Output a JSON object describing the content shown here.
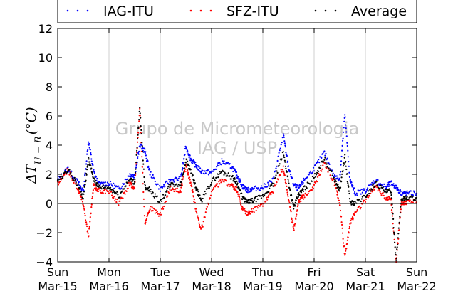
{
  "chart_data": {
    "type": "scatter",
    "ylabel": "ΔT_{U−R}(°C)",
    "ylabel_main": "ΔT",
    "ylabel_sub": "U − R",
    "ylabel_unit": "(°C)",
    "ylim": [
      -4,
      12
    ],
    "yticks": [
      -4,
      -2,
      0,
      2,
      4,
      6,
      8,
      10,
      12
    ],
    "ytick_labels": [
      "−4",
      "−2",
      "0",
      "2",
      "4",
      "6",
      "8",
      "10",
      "12"
    ],
    "xlim": [
      "2015-03-15",
      "2015-03-22"
    ],
    "xticks": [
      {
        "day": "Sun",
        "date": "Mar-15"
      },
      {
        "day": "Mon",
        "date": "Mar-16"
      },
      {
        "day": "Tue",
        "date": "Mar-17"
      },
      {
        "day": "Wed",
        "date": "Mar-18"
      },
      {
        "day": "Thu",
        "date": "Mar-19"
      },
      {
        "day": "Fri",
        "date": "Mar-20"
      },
      {
        "day": "Sat",
        "date": "Mar-21"
      },
      {
        "day": "Sun",
        "date": "Mar-22"
      }
    ],
    "grid": "vertical",
    "zero_line": true,
    "legend_position": "top",
    "watermark": [
      "Grupo de Micrometeorologia",
      "IAG / USP"
    ],
    "series": [
      {
        "name": "IAG-ITU",
        "color": "#0000ff",
        "x_days": [
          0.0,
          0.2,
          0.4,
          0.5,
          0.6,
          0.7,
          0.8,
          1.0,
          1.2,
          1.4,
          1.5,
          1.6,
          1.7,
          1.8,
          2.0,
          2.2,
          2.4,
          2.5,
          2.6,
          2.7,
          2.8,
          3.0,
          3.2,
          3.4,
          3.5,
          3.6,
          3.7,
          3.8,
          4.0,
          4.2,
          4.4,
          4.5,
          4.6,
          4.7,
          4.8,
          5.0,
          5.2,
          5.4,
          5.5,
          5.6,
          5.7,
          5.8,
          6.0,
          6.2,
          6.4,
          6.5,
          6.6,
          6.7,
          6.8,
          7.0
        ],
        "y": [
          1.6,
          2.4,
          1.4,
          0.8,
          4.3,
          2.2,
          1.3,
          1.4,
          1.0,
          2.0,
          1.9,
          4.0,
          3.6,
          2.1,
          1.0,
          1.6,
          1.7,
          3.9,
          3.0,
          2.6,
          2.2,
          2.1,
          2.9,
          2.5,
          1.9,
          1.2,
          0.9,
          1.0,
          1.1,
          1.6,
          4.7,
          2.5,
          1.3,
          1.0,
          1.6,
          2.4,
          3.5,
          1.8,
          1.7,
          6.1,
          1.6,
          0.7,
          0.9,
          1.6,
          1.1,
          1.4,
          1.1,
          0.7,
          0.7,
          0.7
        ]
      },
      {
        "name": "SFZ-ITU",
        "color": "#ff0000",
        "x_days": [
          0.0,
          0.2,
          0.4,
          0.5,
          0.6,
          0.7,
          0.8,
          1.0,
          1.2,
          1.4,
          1.5,
          1.6,
          1.7,
          1.8,
          2.0,
          2.2,
          2.4,
          2.5,
          2.6,
          2.7,
          2.8,
          3.0,
          3.2,
          3.4,
          3.5,
          3.6,
          3.7,
          3.8,
          4.0,
          4.2,
          4.4,
          4.5,
          4.6,
          4.7,
          4.8,
          5.0,
          5.2,
          5.4,
          5.5,
          5.6,
          5.7,
          5.8,
          6.0,
          6.2,
          6.4,
          6.5,
          6.6,
          6.7,
          6.8,
          7.0
        ],
        "y": [
          1.4,
          2.3,
          1.0,
          0.0,
          -2.3,
          1.2,
          0.9,
          0.8,
          0.0,
          1.4,
          1.0,
          6.5,
          -1.3,
          -0.3,
          -0.8,
          1.0,
          0.9,
          2.6,
          1.3,
          -0.5,
          -1.8,
          0.8,
          1.6,
          1.2,
          0.9,
          -0.4,
          -0.7,
          -0.5,
          0.0,
          0.9,
          2.5,
          0.4,
          -1.8,
          0.2,
          0.5,
          1.2,
          2.8,
          1.4,
          0.0,
          -3.6,
          -1.4,
          -0.6,
          0.2,
          1.2,
          0.4,
          0.3,
          -4.0,
          0.0,
          0.1,
          0.1
        ]
      },
      {
        "name": "Average",
        "color": "#000000",
        "x_days": [
          0.0,
          0.2,
          0.4,
          0.5,
          0.6,
          0.7,
          0.8,
          1.0,
          1.2,
          1.4,
          1.5,
          1.6,
          1.7,
          1.8,
          2.0,
          2.2,
          2.4,
          2.5,
          2.6,
          2.7,
          2.8,
          3.0,
          3.2,
          3.4,
          3.5,
          3.6,
          3.7,
          3.8,
          4.0,
          4.2,
          4.4,
          4.5,
          4.6,
          4.7,
          4.8,
          5.0,
          5.2,
          5.4,
          5.5,
          5.6,
          5.7,
          5.8,
          6.0,
          6.2,
          6.4,
          6.5,
          6.6,
          6.7,
          6.8,
          7.0
        ],
        "y": [
          1.5,
          2.35,
          1.2,
          0.4,
          3.0,
          1.7,
          1.1,
          1.1,
          0.5,
          1.7,
          1.4,
          6.5,
          1.2,
          0.9,
          0.1,
          1.3,
          1.3,
          3.0,
          2.2,
          1.0,
          0.2,
          1.5,
          2.2,
          1.8,
          1.4,
          0.4,
          0.1,
          0.2,
          0.5,
          1.3,
          3.5,
          1.5,
          -0.3,
          0.6,
          1.0,
          1.8,
          3.1,
          1.6,
          0.9,
          3.2,
          0.1,
          0.0,
          0.5,
          1.4,
          0.8,
          0.9,
          -3.9,
          0.3,
          0.4,
          0.4
        ]
      }
    ]
  }
}
